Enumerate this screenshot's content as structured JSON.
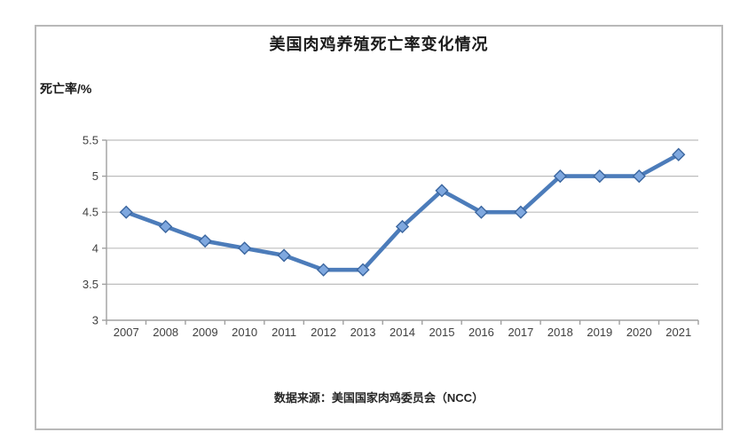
{
  "chart_data": {
    "type": "line",
    "title": "美国肉鸡养殖死亡率变化情况",
    "ylabel": "死亡率/%",
    "xlabel": "",
    "source_note": "数据来源：美国国家肉鸡委员会（NCC）",
    "categories": [
      "2007",
      "2008",
      "2009",
      "2010",
      "2011",
      "2012",
      "2013",
      "2014",
      "2015",
      "2016",
      "2017",
      "2018",
      "2019",
      "2020",
      "2021"
    ],
    "series": [
      {
        "name": "死亡率",
        "values": [
          4.5,
          4.3,
          4.1,
          4.0,
          3.9,
          3.7,
          3.7,
          4.3,
          4.8,
          4.5,
          4.5,
          5.0,
          5.0,
          5.0,
          5.3
        ]
      }
    ],
    "ylim": [
      3,
      5.5
    ],
    "ytick_step": 0.5,
    "ytick_labels": [
      "3",
      "3.5",
      "4",
      "4.5",
      "5",
      "5.5"
    ],
    "grid": "horizontal",
    "legend": "none",
    "marker": "diamond",
    "colors": {
      "line": "#4c7cba",
      "marker_fill": "#7fa8df",
      "marker_stroke": "#3b669f",
      "gridline": "#bdbdbd",
      "axis": "#a0a0a0",
      "tick_label": "#3f3f3f",
      "frame_border": "#b9b9b9",
      "title": "#1a1a1a"
    }
  }
}
